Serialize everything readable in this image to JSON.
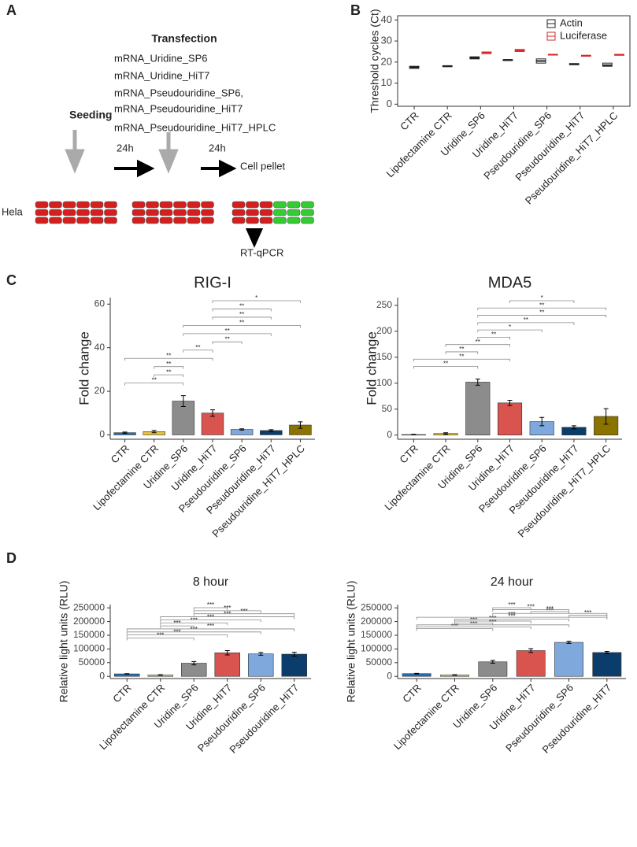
{
  "panel_labels": [
    "A",
    "B",
    "C",
    "D"
  ],
  "diagram": {
    "seeding": "Seeding",
    "transfection": "Transfection",
    "mrnas": [
      "mRNA_Uridine_SP6",
      "mRNA_Uridine_HiT7",
      "mRNA_Pseudouridine_SP6,",
      "mRNA_Pseudouridine_HiT7",
      "mRNA_Pseudouridine_HiT7_HPLC"
    ],
    "interval1": "24h",
    "interval2": "24h",
    "cell_pellet": "Cell pellet",
    "cell_line": "Hela",
    "readout": "RT-qPCR"
  },
  "chart_data": [
    {
      "type": "box",
      "ylabel": "Threshold cycles (Ct)",
      "categories": [
        "CTR",
        "Lipofectamine CTR",
        "Uridine_SP6",
        "Uridine_HiT7",
        "Pseudouridine_SP6",
        "Pseudouridine_HiT7",
        "Pseudouridine_HiT7_HPLC"
      ],
      "series": [
        {
          "name": "Actin",
          "color": "#222222",
          "values": [
            17.5,
            18,
            22,
            21,
            20.5,
            19,
            18.5
          ],
          "q1": [
            17,
            17.8,
            21.5,
            20.7,
            19.5,
            18.7,
            18
          ],
          "q3": [
            18,
            18.3,
            22.5,
            21.2,
            21.5,
            19.3,
            19.5
          ]
        },
        {
          "name": "Luciferase",
          "color": "#d62728",
          "values": [
            null,
            null,
            24.5,
            25.5,
            23.5,
            23,
            23.5
          ],
          "q1": [
            null,
            null,
            24,
            25,
            23.3,
            22.8,
            23.2
          ],
          "q3": [
            null,
            null,
            24.8,
            26,
            23.7,
            23.2,
            23.6
          ]
        }
      ],
      "ylim": [
        -1,
        42
      ],
      "yticks": [
        0,
        10,
        20,
        30,
        40
      ],
      "legend": "top-right"
    },
    {
      "type": "bar",
      "title": "RIG-I",
      "ylabel": "Fold change",
      "categories": [
        "CTR",
        "Lipofectamine CTR",
        "Uridine_SP6",
        "Uridine_HiT7",
        "Pseudouridine_SP6",
        "Pseudouridine_HiT7",
        "Pseudouridine_HiT7_HPLC"
      ],
      "values": [
        1,
        1.5,
        15.5,
        10,
        2.5,
        2,
        4.5
      ],
      "errors": [
        0.3,
        0.5,
        2.5,
        1.5,
        0.3,
        0.4,
        1.5
      ],
      "colors": [
        "#1f6fb5",
        "#e8c23a",
        "#8c8c8c",
        "#d9534f",
        "#7fa8dc",
        "#0a3d6b",
        "#8b7300"
      ],
      "ylim": [
        -2,
        63
      ],
      "yticks": [
        0,
        20,
        40,
        60
      ],
      "brackets": [
        {
          "from": "CTR",
          "to": "Uridine_SP6",
          "label": "**"
        },
        {
          "from": "Lipofectamine CTR",
          "to": "Uridine_SP6",
          "label": "**"
        },
        {
          "from": "Lipofectamine CTR",
          "to": "Uridine_SP6",
          "label": "**"
        },
        {
          "from": "CTR",
          "to": "Uridine_HiT7",
          "label": "**"
        },
        {
          "from": "Uridine_SP6",
          "to": "Uridine_HiT7",
          "label": "**"
        },
        {
          "from": "Uridine_HiT7",
          "to": "Pseudouridine_SP6",
          "label": "**"
        },
        {
          "from": "Uridine_SP6",
          "to": "Pseudouridine_HiT7",
          "label": "**"
        },
        {
          "from": "Uridine_SP6",
          "to": "Pseudouridine_HiT7_HPLC",
          "label": "**"
        },
        {
          "from": "Uridine_HiT7",
          "to": "Pseudouridine_HiT7",
          "label": "**"
        },
        {
          "from": "Uridine_HiT7",
          "to": "Pseudouridine_HiT7",
          "label": "**"
        },
        {
          "from": "Uridine_HiT7",
          "to": "Pseudouridine_HiT7_HPLC",
          "label": "*"
        }
      ]
    },
    {
      "type": "bar",
      "title": "MDA5",
      "ylabel": "Fold change",
      "categories": [
        "CTR",
        "Lipofectamine CTR",
        "Uridine_SP6",
        "Uridine_HiT7",
        "Pseudouridine_SP6",
        "Pseudouridine_HiT7",
        "Pseudouridine_HiT7_HPLC"
      ],
      "values": [
        1,
        3,
        102,
        62,
        26,
        15,
        36
      ],
      "errors": [
        0.5,
        1.5,
        6,
        5,
        8,
        3,
        15
      ],
      "colors": [
        "#1f6fb5",
        "#e8c23a",
        "#8c8c8c",
        "#d9534f",
        "#7fa8dc",
        "#0a3d6b",
        "#8b7300"
      ],
      "ylim": [
        -8,
        265
      ],
      "yticks": [
        0,
        50,
        100,
        150,
        200,
        250
      ],
      "brackets": [
        {
          "from": "CTR",
          "to": "Uridine_SP6",
          "label": "**"
        },
        {
          "from": "CTR",
          "to": "Uridine_HiT7",
          "label": "**"
        },
        {
          "from": "Lipofectamine CTR",
          "to": "Uridine_SP6",
          "label": "**"
        },
        {
          "from": "Lipofectamine CTR",
          "to": "Uridine_HiT7",
          "label": "**"
        },
        {
          "from": "Uridine_SP6",
          "to": "Uridine_HiT7",
          "label": "**"
        },
        {
          "from": "Uridine_SP6",
          "to": "Pseudouridine_SP6",
          "label": "*"
        },
        {
          "from": "Uridine_SP6",
          "to": "Pseudouridine_HiT7",
          "label": "**"
        },
        {
          "from": "Uridine_SP6",
          "to": "Pseudouridine_HiT7_HPLC",
          "label": "**"
        },
        {
          "from": "Uridine_SP6",
          "to": "Pseudouridine_HiT7_HPLC",
          "label": "**"
        },
        {
          "from": "Uridine_HiT7",
          "to": "Pseudouridine_HiT7",
          "label": "*"
        }
      ]
    },
    {
      "type": "bar",
      "title": "8 hour",
      "ylabel": "Relative light units (RLU)",
      "categories": [
        "CTR",
        "Lipofectamine CTR",
        "Uridine_SP6",
        "Uridine_HiT7",
        "Pseudouridine_SP6",
        "Pseudouridine_HiT7"
      ],
      "values": [
        9000,
        5000,
        48000,
        86000,
        82000,
        81000
      ],
      "errors": [
        1000,
        1000,
        6000,
        8000,
        5000,
        7000
      ],
      "colors": [
        "#1f6fb5",
        "#e8c23a",
        "#8c8c8c",
        "#d9534f",
        "#7fa8dc",
        "#0a3d6b"
      ],
      "ylim": [
        -8000,
        262000
      ],
      "yticks": [
        0,
        50000,
        100000,
        150000,
        200000,
        250000
      ],
      "brackets": [
        {
          "from": "CTR",
          "to": "Uridine_SP6",
          "label": "***"
        },
        {
          "from": "CTR",
          "to": "Uridine_HiT7",
          "label": "***"
        },
        {
          "from": "CTR",
          "to": "Pseudouridine_SP6",
          "label": "***"
        },
        {
          "from": "CTR",
          "to": "Pseudouridine_HiT7",
          "label": "***"
        },
        {
          "from": "Lipofectamine CTR",
          "to": "Uridine_SP6",
          "label": "***"
        },
        {
          "from": "Lipofectamine CTR",
          "to": "Uridine_HiT7",
          "label": "***"
        },
        {
          "from": "Lipofectamine CTR",
          "to": "Pseudouridine_SP6",
          "label": "***"
        },
        {
          "from": "Lipofectamine CTR",
          "to": "Pseudouridine_HiT7",
          "label": "***"
        },
        {
          "from": "Uridine_SP6",
          "to": "Pseudouridine_HiT7",
          "label": "***"
        },
        {
          "from": "Uridine_SP6",
          "to": "Pseudouridine_SP6",
          "label": "***"
        },
        {
          "from": "Uridine_SP6",
          "to": "Uridine_HiT7",
          "label": "***"
        }
      ]
    },
    {
      "type": "bar",
      "title": "24 hour",
      "ylabel": "Relative light units (RLU)",
      "categories": [
        "CTR",
        "Lipofectamine CTR",
        "Uridine_SP6",
        "Uridine_HiT7",
        "Pseudouridine_SP6",
        "Pseudouridine_HiT7"
      ],
      "values": [
        10000,
        5000,
        53000,
        94000,
        124000,
        87000
      ],
      "errors": [
        1000,
        1000,
        5000,
        7000,
        4000,
        4000
      ],
      "colors": [
        "#1f6fb5",
        "#e8c23a",
        "#8c8c8c",
        "#d9534f",
        "#7fa8dc",
        "#0a3d6b"
      ],
      "ylim": [
        -8000,
        262000
      ],
      "yticks": [
        0,
        50000,
        100000,
        150000,
        200000,
        250000
      ],
      "brackets": [
        {
          "from": "CTR",
          "to": "Uridine_SP6",
          "label": "***"
        },
        {
          "from": "CTR",
          "to": "Uridine_HiT7",
          "label": "***"
        },
        {
          "from": "CTR",
          "to": "Pseudouridine_SP6",
          "label": "***"
        },
        {
          "from": "Lipofectamine CTR",
          "to": "Uridine_SP6",
          "label": "***"
        },
        {
          "from": "Lipofectamine CTR",
          "to": "Uridine_HiT7",
          "label": "***"
        },
        {
          "from": "Lipofectamine CTR",
          "to": "Pseudouridine_SP6",
          "label": "***"
        },
        {
          "from": "CTR",
          "to": "Pseudouridine_HiT7",
          "label": "***"
        },
        {
          "from": "Pseudouridine_SP6",
          "to": "Pseudouridine_HiT7",
          "label": "***"
        },
        {
          "from": "Uridine_SP6",
          "to": "Pseudouridine_HiT7",
          "label": "***"
        },
        {
          "from": "Uridine_HiT7",
          "to": "Pseudouridine_SP6",
          "label": "***"
        },
        {
          "from": "Uridine_SP6",
          "to": "Pseudouridine_SP6",
          "label": "***"
        },
        {
          "from": "Uridine_SP6",
          "to": "Uridine_HiT7",
          "label": "***"
        }
      ]
    }
  ]
}
